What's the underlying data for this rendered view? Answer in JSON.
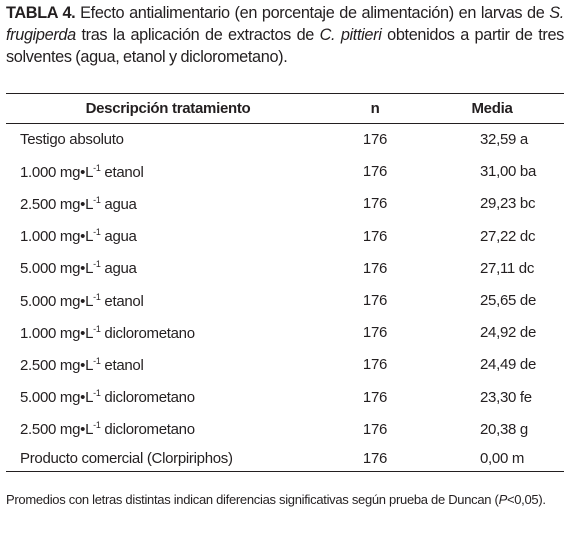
{
  "caption": {
    "label": "TABLA 4.",
    "text1": "Efecto antialimentario (en porcentaje de alimentación) en larvas de",
    "species1": "S. frugiperda",
    "text2": "tras la aplicación de extractos de",
    "species2": "C. pittieri",
    "text3": "obtenidos a partir de tres solventes (agua, etanol y diclorometano)."
  },
  "table": {
    "header": [
      "Descripción tratamiento",
      "n",
      "Media"
    ],
    "rows": [
      {
        "description": "Testigo absoluto",
        "n": 176,
        "media": "32,59 a"
      },
      {
        "dose": "1.000 mg•L",
        "exponent": "-1",
        "solvent": "etanol",
        "n": 176,
        "media": "31,00 ba"
      },
      {
        "dose": "2.500 mg•L",
        "exponent": "-1",
        "solvent": "agua",
        "n": 176,
        "media": "29,23 bc"
      },
      {
        "dose": "1.000 mg•L",
        "exponent": "-1",
        "solvent": "agua",
        "n": 176,
        "media": "27,22 dc"
      },
      {
        "dose": "5.000 mg•L",
        "exponent": "-1",
        "solvent": "agua",
        "n": 176,
        "media": "27,11 dc"
      },
      {
        "dose": "5.000 mg•L",
        "exponent": "-1",
        "solvent": "etanol",
        "n": 176,
        "media": "25,65 de"
      },
      {
        "dose": "1.000 mg•L",
        "exponent": "-1",
        "solvent": "diclorometano",
        "n": 176,
        "media": "24,92 de"
      },
      {
        "dose": "2.500 mg•L",
        "exponent": "-1",
        "solvent": "etanol",
        "n": 176,
        "media": "24,49 de"
      },
      {
        "dose": "5.000 mg•L",
        "exponent": "-1",
        "solvent": "diclorometano",
        "n": 176,
        "media": "23,30 fe"
      },
      {
        "dose": "2.500 mg•L",
        "exponent": "-1",
        "solvent": "diclorometano",
        "n": 176,
        "media": "20,38 g"
      },
      {
        "description": "Producto comercial (Clorpiriphos)",
        "n": 176,
        "media": "0,00 m"
      }
    ]
  },
  "footnote": {
    "text": "Promedios con letras distintas indican diferencias significativas según prueba de Duncan",
    "open": "(",
    "variable": "P",
    "condition": "<0,05)."
  }
}
